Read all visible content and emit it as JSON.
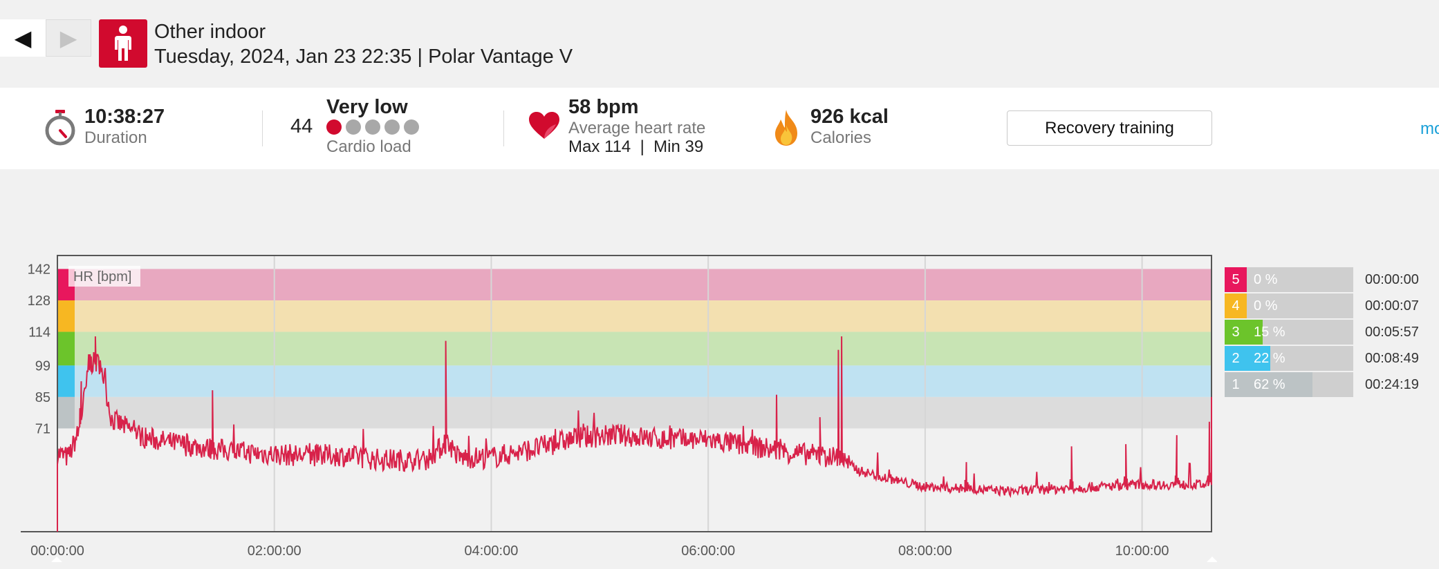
{
  "header": {
    "sport": "Other indoor",
    "subtitle": "Tuesday, 2024, Jan 23 22:35 | Polar Vantage V",
    "prev_icon": "◀",
    "next_icon": "▶"
  },
  "summary": {
    "duration_value": "10:38:27",
    "duration_label": "Duration",
    "cardio_value": "44",
    "cardio_level": "Very low",
    "cardio_label": "Cardio load",
    "cardio_dots_total": 5,
    "cardio_dots_active": 1,
    "hr_value": "58 bpm",
    "hr_label": "Average heart rate",
    "hr_minmax": "Max 114  |  Min 39",
    "calories_value": "926 kcal",
    "calories_label": "Calories",
    "benefit_button": "Recovery training",
    "more_link": "mo"
  },
  "colors": {
    "accent": "#d10a2e",
    "line": "#d8224a",
    "link": "#1aa0d8",
    "zone5": "#e8175d",
    "zone4": "#f7b722",
    "zone3": "#6cc42b",
    "zone2": "#3fc3ee",
    "zone1": "#bcc3c5"
  },
  "chart_data": {
    "type": "line",
    "series_label": "HR [bpm]",
    "y_ticks": [
      142,
      128,
      114,
      99,
      85,
      71
    ],
    "x_tick_labels": [
      "00:00:00",
      "02:00:00",
      "04:00:00",
      "06:00:00",
      "08:00:00",
      "10:00:00"
    ],
    "x_ticks_hours": [
      0,
      2,
      4,
      6,
      8,
      10
    ],
    "x_range_hours": [
      0,
      10.64
    ],
    "y_range": [
      25,
      148
    ],
    "zones": [
      {
        "zone": 5,
        "min": 128,
        "max": 142,
        "color": "#e8a8c0"
      },
      {
        "zone": 4,
        "min": 114,
        "max": 128,
        "color": "#f3e0b0"
      },
      {
        "zone": 3,
        "min": 99,
        "max": 114,
        "color": "#c8e4b4"
      },
      {
        "zone": 2,
        "min": 85,
        "max": 99,
        "color": "#bfe2f2"
      },
      {
        "zone": 1,
        "min": 71,
        "max": 85,
        "color": "#dcdcdc"
      }
    ],
    "hr_profile": [
      [
        0.0,
        60
      ],
      [
        0.1,
        58
      ],
      [
        0.2,
        70
      ],
      [
        0.3,
        100
      ],
      [
        0.4,
        100
      ],
      [
        0.5,
        75
      ],
      [
        0.8,
        67
      ],
      [
        1.0,
        65
      ],
      [
        1.4,
        62
      ],
      [
        1.8,
        60
      ],
      [
        2.2,
        59
      ],
      [
        2.6,
        59
      ],
      [
        3.0,
        57
      ],
      [
        3.4,
        57
      ],
      [
        3.6,
        65
      ],
      [
        3.7,
        58
      ],
      [
        4.0,
        58
      ],
      [
        4.4,
        62
      ],
      [
        4.8,
        67
      ],
      [
        5.2,
        68
      ],
      [
        5.6,
        66
      ],
      [
        6.0,
        66
      ],
      [
        6.4,
        63
      ],
      [
        6.8,
        60
      ],
      [
        7.2,
        58
      ],
      [
        7.4,
        52
      ],
      [
        7.8,
        47
      ],
      [
        8.0,
        45
      ],
      [
        8.4,
        44
      ],
      [
        8.8,
        43
      ],
      [
        9.2,
        44
      ],
      [
        9.6,
        45
      ],
      [
        10.0,
        46
      ],
      [
        10.4,
        46
      ],
      [
        10.64,
        46
      ]
    ],
    "hr_spikes": [
      [
        0.22,
        92
      ],
      [
        0.3,
        104
      ],
      [
        0.35,
        112
      ],
      [
        1.43,
        88
      ],
      [
        3.58,
        110
      ],
      [
        6.63,
        86
      ],
      [
        7.03,
        76
      ],
      [
        7.2,
        106
      ],
      [
        7.23,
        112
      ],
      [
        8.38,
        56
      ],
      [
        9.35,
        63
      ],
      [
        9.85,
        64
      ],
      [
        10.32,
        68
      ],
      [
        10.62,
        74
      ]
    ],
    "end_values": {
      "start": 25,
      "end": 85
    }
  },
  "zones_summary": [
    {
      "zone": "5",
      "percent": "0 %",
      "fraction": 0.0,
      "time": "00:00:00",
      "color": "#e8175d",
      "fill": "#d80f52"
    },
    {
      "zone": "4",
      "percent": "0 %",
      "fraction": 0.0,
      "time": "00:00:07",
      "color": "#f7b722",
      "fill": "#f0a810"
    },
    {
      "zone": "3",
      "percent": "15 %",
      "fraction": 0.15,
      "time": "00:05:57",
      "color": "#6cc42b",
      "fill": "#6cc42b"
    },
    {
      "zone": "2",
      "percent": "22 %",
      "fraction": 0.22,
      "time": "00:08:49",
      "color": "#3fc3ee",
      "fill": "#3fc3ee"
    },
    {
      "zone": "1",
      "percent": "62 %",
      "fraction": 0.62,
      "time": "00:24:19",
      "color": "#bcc3c5",
      "fill": "#bcc3c5"
    }
  ]
}
